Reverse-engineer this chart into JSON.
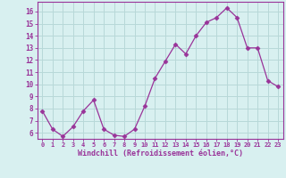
{
  "x": [
    0,
    1,
    2,
    3,
    4,
    5,
    6,
    7,
    8,
    9,
    10,
    11,
    12,
    13,
    14,
    15,
    16,
    17,
    18,
    19,
    20,
    21,
    22,
    23
  ],
  "y": [
    7.8,
    6.3,
    5.7,
    6.5,
    7.8,
    8.7,
    6.3,
    5.8,
    5.7,
    6.3,
    8.2,
    10.5,
    11.9,
    13.3,
    12.5,
    14.0,
    15.1,
    15.5,
    16.3,
    15.5,
    13.0,
    13.0,
    10.3,
    9.8
  ],
  "line_color": "#993399",
  "marker": "D",
  "marker_size": 2.5,
  "bg_color": "#d8f0f0",
  "grid_color": "#b8d8d8",
  "axis_color": "#993399",
  "tick_color": "#993399",
  "xlabel": "Windchill (Refroidissement éolien,°C)",
  "ylabel_ticks": [
    6,
    7,
    8,
    9,
    10,
    11,
    12,
    13,
    14,
    15,
    16
  ],
  "ylim": [
    5.5,
    16.8
  ],
  "xlim": [
    -0.5,
    23.5
  ],
  "font_color": "#993399",
  "font_family": "monospace",
  "tick_fontsize_x": 5.0,
  "tick_fontsize_y": 5.5,
  "xlabel_fontsize": 6.0
}
